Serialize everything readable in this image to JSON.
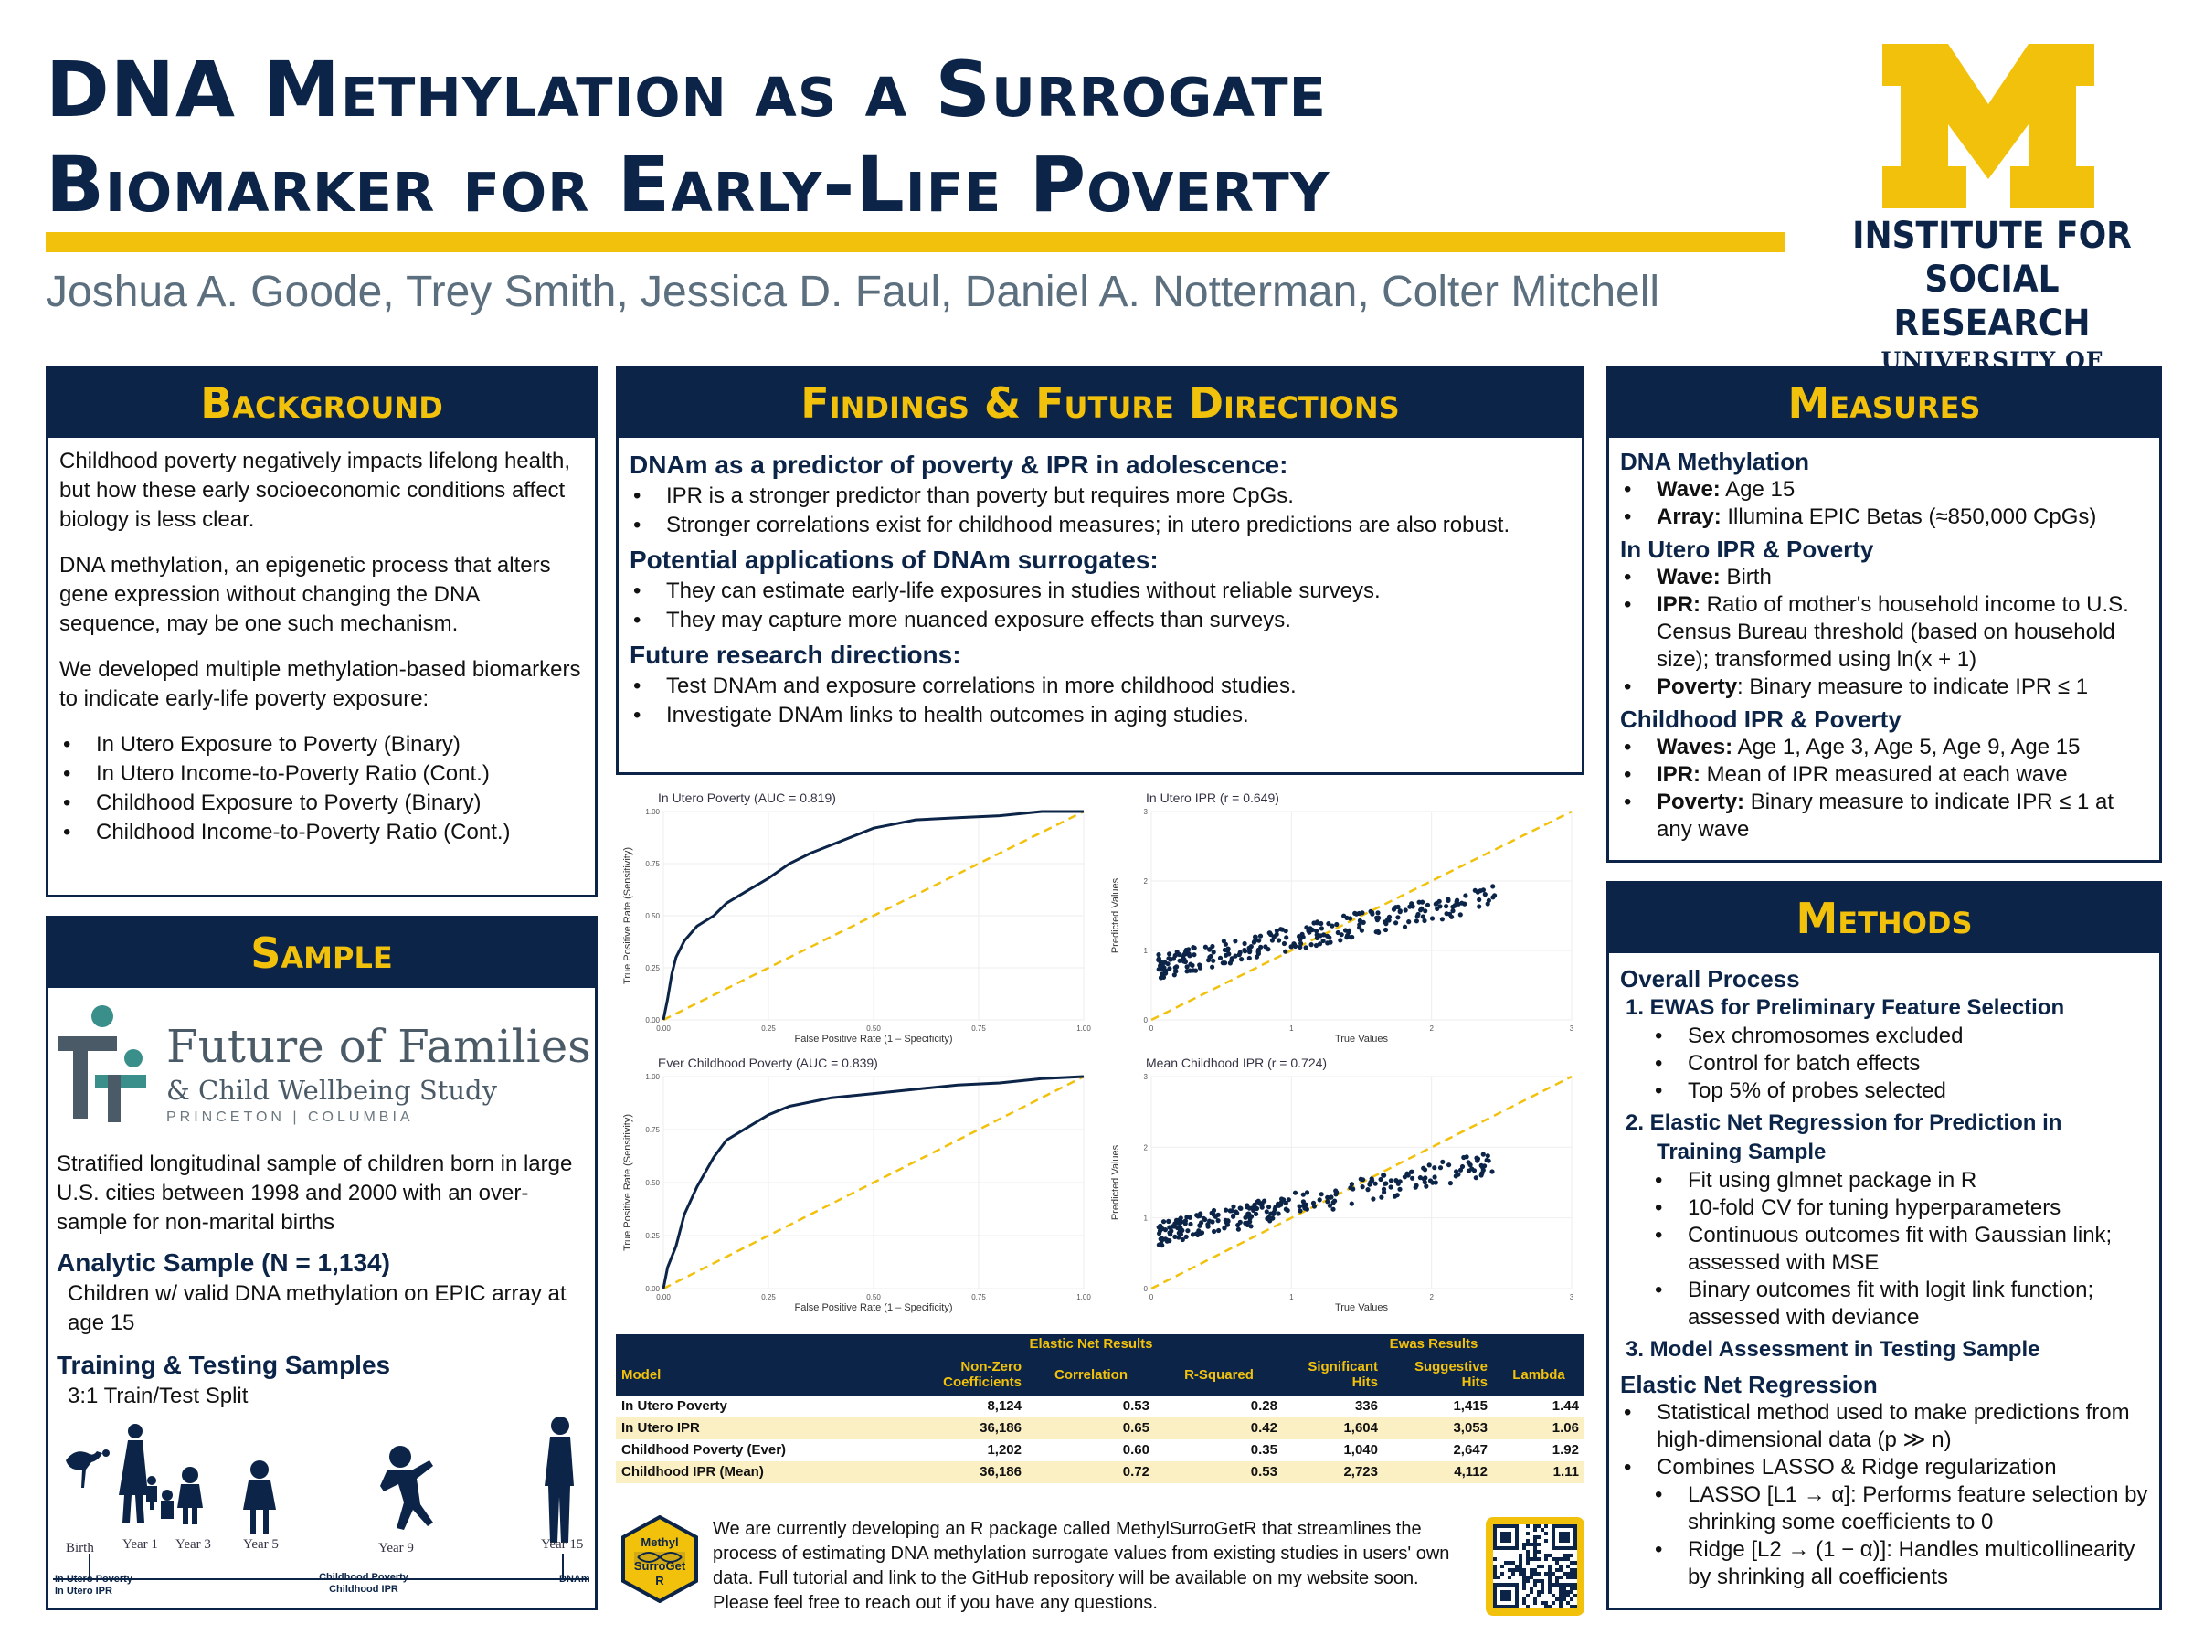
{
  "title": {
    "line1": "DNA Methylation as a Surrogate",
    "line2": "Biomarker for Early-Life Poverty"
  },
  "authors": "Joshua A. Goode, Trey Smith, Jessica D. Faul, Daniel A. Notterman, Colter Mitchell",
  "logo": {
    "l1": "INSTITUTE FOR",
    "l2": "SOCIAL RESEARCH",
    "l3": "UNIVERSITY OF MICHIGAN"
  },
  "colors": {
    "navy": "#0b2447",
    "maize": "#f2c10c",
    "gray": "#5c6f7e",
    "row_highlight": "#fbefc4"
  },
  "background": {
    "heading": "Background",
    "p1": "Childhood poverty negatively impacts lifelong health, but how these early socioeconomic conditions affect biology is less clear.",
    "p2": "DNA methylation, an epigenetic process that alters gene expression without changing the DNA sequence, may be one such mechanism.",
    "p3": "We developed multiple methylation-based biomarkers to indicate early-life poverty exposure:",
    "items": [
      "In Utero Exposure to Poverty (Binary)",
      "In Utero Income-to-Poverty Ratio (Cont.)",
      "Childhood Exposure to Poverty (Binary)",
      "Childhood Income-to-Poverty Ratio (Cont.)"
    ]
  },
  "sample": {
    "heading": "Sample",
    "logo_name": "Future of Families",
    "logo_sub": "& Child Wellbeing Study",
    "logo_inst": "PRINCETON | COLUMBIA",
    "desc": "Stratified longitudinal sample of children born in large U.S. cities between 1998 and 2000 with an over-sample for non-marital births",
    "analytic_head": "Analytic Sample (N = 1,134)",
    "analytic_text": "Children w/ valid DNA methylation on EPIC array at age 15",
    "train_head": "Training & Testing Samples",
    "train_text": "3:1 Train/Test Split",
    "timeline": {
      "birth": "Birth",
      "y1": "Year 1",
      "y3": "Year 3",
      "y5": "Year 5",
      "y9": "Year 9",
      "y15": "Year 15",
      "lab_birth1": "In Utero Poverty",
      "lab_birth2": "In Utero IPR",
      "lab_child1": "Childhood Poverty",
      "lab_child2": "Childhood IPR",
      "lab_dnam": "DNAm"
    }
  },
  "findings": {
    "heading": "Findings & Future Directions",
    "s1": "DNAm as a predictor of poverty & IPR in adolescence:",
    "s1_items": [
      "IPR is a stronger predictor than poverty but requires more CpGs.",
      "Stronger correlations exist for childhood measures; in utero predictions are also robust."
    ],
    "s2": "Potential applications of DNAm surrogates:",
    "s2_items": [
      "They can estimate early-life exposures in studies without reliable surveys.",
      "They may capture more nuanced exposure effects than surveys."
    ],
    "s3": "Future research directions:",
    "s3_items": [
      "Test DNAm and exposure correlations in more childhood studies.",
      "Investigate DNAm links to health outcomes in aging studies."
    ]
  },
  "chart_data": [
    {
      "type": "line",
      "title": "In Utero Poverty (AUC = 0.819)",
      "xlabel": "False Positive Rate (1 – Specificity)",
      "ylabel": "True Positive Rate (Sensitivity)",
      "xlim": [
        0,
        1
      ],
      "ylim": [
        0,
        1
      ],
      "x_ticks": [
        "0.00",
        "0.25",
        "0.50",
        "0.75",
        "1.00"
      ],
      "y_ticks": [
        "0.00",
        "0.25",
        "0.50",
        "0.75",
        "1.00"
      ],
      "series": [
        {
          "x": [
            0,
            0.01,
            0.02,
            0.03,
            0.05,
            0.08,
            0.12,
            0.15,
            0.2,
            0.25,
            0.3,
            0.35,
            0.4,
            0.45,
            0.5,
            0.55,
            0.6,
            0.7,
            0.8,
            0.9,
            1.0
          ],
          "y": [
            0,
            0.1,
            0.22,
            0.3,
            0.38,
            0.45,
            0.5,
            0.56,
            0.62,
            0.68,
            0.75,
            0.8,
            0.84,
            0.88,
            0.92,
            0.94,
            0.96,
            0.97,
            0.98,
            1.0,
            1.0
          ]
        }
      ]
    },
    {
      "type": "scatter",
      "title": "In Utero IPR (r = 0.649)",
      "xlabel": "True Values",
      "ylabel": "Predicted Values",
      "xlim": [
        0,
        3
      ],
      "ylim": [
        0,
        3
      ],
      "x_ticks": [
        "0",
        "1",
        "2",
        "3"
      ],
      "y_ticks": [
        "0",
        "1",
        "2",
        "3"
      ]
    },
    {
      "type": "line",
      "title": "Ever Childhood Poverty (AUC = 0.839)",
      "xlabel": "False Positive Rate (1 – Specificity)",
      "ylabel": "True Positive Rate (Sensitivity)",
      "xlim": [
        0,
        1
      ],
      "ylim": [
        0,
        1
      ],
      "x_ticks": [
        "0.00",
        "0.25",
        "0.50",
        "0.75",
        "1.00"
      ],
      "y_ticks": [
        "0.00",
        "0.25",
        "0.50",
        "0.75",
        "1.00"
      ],
      "series": [
        {
          "x": [
            0,
            0.01,
            0.03,
            0.05,
            0.08,
            0.1,
            0.12,
            0.15,
            0.2,
            0.25,
            0.3,
            0.4,
            0.5,
            0.6,
            0.7,
            0.8,
            0.9,
            1.0
          ],
          "y": [
            0,
            0.1,
            0.2,
            0.35,
            0.48,
            0.55,
            0.62,
            0.7,
            0.76,
            0.82,
            0.86,
            0.9,
            0.92,
            0.94,
            0.96,
            0.97,
            0.99,
            1.0
          ]
        }
      ]
    },
    {
      "type": "scatter",
      "title": "Mean Childhood IPR (r = 0.724)",
      "xlabel": "True Values",
      "ylabel": "Predicted Values",
      "xlim": [
        0,
        3
      ],
      "ylim": [
        0,
        3
      ],
      "x_ticks": [
        "0",
        "1",
        "2",
        "3"
      ],
      "y_ticks": [
        "0",
        "1",
        "2",
        "3"
      ]
    }
  ],
  "results_table": {
    "group1": "Elastic Net Results",
    "group2": "Ewas Results",
    "headers": [
      "Model",
      "Non-Zero Coefficients",
      "Correlation",
      "R-Squared",
      "Significant Hits",
      "Suggestive Hits",
      "Lambda"
    ],
    "rows": [
      [
        "In Utero Poverty",
        "8,124",
        "0.53",
        "0.28",
        "336",
        "1,415",
        "1.44"
      ],
      [
        "In Utero IPR",
        "36,186",
        "0.65",
        "0.42",
        "1,604",
        "3,053",
        "1.06"
      ],
      [
        "Childhood Poverty (Ever)",
        "1,202",
        "0.60",
        "0.35",
        "1,040",
        "2,647",
        "1.92"
      ],
      [
        "Childhood IPR (Mean)",
        "36,186",
        "0.72",
        "0.53",
        "2,723",
        "4,112",
        "1.11"
      ]
    ]
  },
  "package": {
    "hex_l1": "Methyl",
    "hex_l2": "SurroGet",
    "hex_l3": "R",
    "text": "We are currently developing an R package called MethylSurroGetR that streamlines the process of estimating DNA methylation surrogate values from existing studies in users' own data. Full tutorial and link to the GitHub repository will be available on my website soon. Please feel free to reach out if you have any questions."
  },
  "measures": {
    "heading": "Measures",
    "dna": "DNA Methylation",
    "dna_wave_k": "Wave:",
    "dna_wave_v": " Age 15",
    "dna_array_k": "Array:",
    "dna_array_v": " Illumina EPIC Betas (≈850,000 CpGs)",
    "utero": "In Utero IPR & Poverty",
    "ut_wave_k": "Wave:",
    "ut_wave_v": " Birth",
    "ut_ipr_k": "IPR:",
    "ut_ipr_v": " Ratio of mother's household income to U.S. Census Bureau threshold (based on household size); transformed using ln(x + 1)",
    "ut_pov_k": "Poverty",
    "ut_pov_v": ": Binary measure to indicate IPR ≤ 1",
    "child": "Childhood IPR & Poverty",
    "ch_wave_k": "Waves:",
    "ch_wave_v": " Age 1, Age 3, Age 5, Age 9, Age 15",
    "ch_ipr_k": "IPR:",
    "ch_ipr_v": " Mean of IPR measured at each wave",
    "ch_pov_k": "Poverty:",
    "ch_pov_v": " Binary measure to indicate IPR ≤ 1 at any wave"
  },
  "methods": {
    "heading": "Methods",
    "overall": "Overall Process",
    "step1": "1.  EWAS for Preliminary Feature Selection",
    "step1_items": [
      "Sex chromosomes excluded",
      "Control for batch effects",
      "Top 5% of probes selected"
    ],
    "step2": "2.  Elastic Net Regression for Prediction in Training Sample",
    "step2_items": [
      "Fit using glmnet package in R",
      "10-fold CV for tuning hyperparameters",
      "Continuous outcomes fit with Gaussian link; assessed with MSE",
      "Binary outcomes fit with logit link function; assessed with deviance"
    ],
    "step3": "3.  Model Assessment in Testing Sample",
    "enet": "Elastic Net Regression",
    "enet_items": [
      "Statistical method used to make predictions from high-dimensional data (p ≫ n)",
      "Combines LASSO & Ridge regularization"
    ],
    "enet_sub": [
      "LASSO [L1 → α]: Performs feature selection by shrinking some coefficients to 0",
      "Ridge [L2 → (1 − α)]: Handles multicollinearity by shrinking all coefficients"
    ]
  }
}
